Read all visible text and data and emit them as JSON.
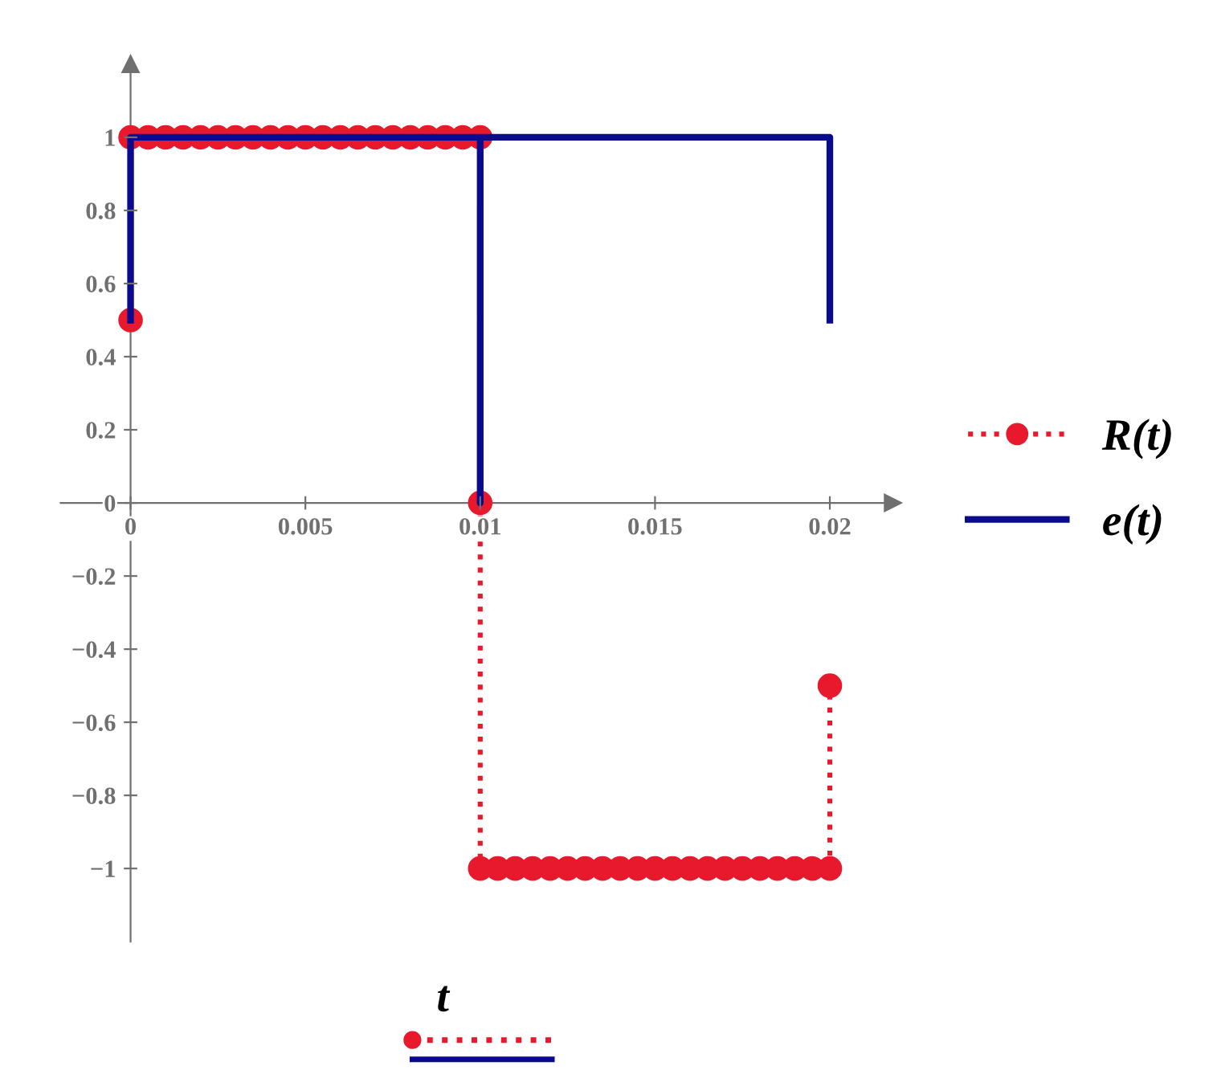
{
  "chart_data": {
    "type": "line",
    "xlabel": "t",
    "xlim": [
      -0.002,
      0.0218
    ],
    "ylim": [
      -1.2,
      1.2
    ],
    "xticks": [
      {
        "value": 0,
        "label": "0"
      },
      0.005,
      0.01,
      0.015,
      0.02
    ],
    "yticks": [
      -1,
      -0.8,
      -0.6,
      -0.4,
      -0.2,
      {
        "value": 0,
        "label": "0"
      },
      0.2,
      0.4,
      0.6,
      0.8,
      1
    ],
    "grid": false,
    "legend": "right",
    "series": [
      {
        "name": "e(t)",
        "color": "#0a0a8c",
        "marker": "none",
        "line_style": "solid",
        "x": [
          0,
          0,
          0.01,
          0.01,
          0.01,
          0.02,
          0.02
        ],
        "values": [
          0.5,
          1,
          1,
          0,
          1,
          1,
          0.5
        ]
      },
      {
        "name": "R(t)",
        "color": "#e8192c",
        "marker": "circle",
        "line_style": "dotted",
        "x": [
          0,
          0,
          0.0005,
          0.001,
          0.0015,
          0.002,
          0.0025,
          0.003,
          0.0035,
          0.004,
          0.0045,
          0.005,
          0.0055,
          0.006,
          0.0065,
          0.007,
          0.0075,
          0.008,
          0.0085,
          0.009,
          0.0095,
          0.01,
          0.01,
          0.01,
          0.0105,
          0.011,
          0.0115,
          0.012,
          0.0125,
          0.013,
          0.0135,
          0.014,
          0.0145,
          0.015,
          0.0155,
          0.016,
          0.0165,
          0.017,
          0.0175,
          0.018,
          0.0185,
          0.019,
          0.0195,
          0.02,
          0.02
        ],
        "values": [
          0.5,
          1,
          1,
          1,
          1,
          1,
          1,
          1,
          1,
          1,
          1,
          1,
          1,
          1,
          1,
          1,
          1,
          1,
          1,
          1,
          1,
          1,
          0,
          -1,
          -1,
          -1,
          -1,
          -1,
          -1,
          -1,
          -1,
          -1,
          -1,
          -1,
          -1,
          -1,
          -1,
          -1,
          -1,
          -1,
          -1,
          -1,
          -1,
          -1,
          -0.5
        ]
      }
    ]
  }
}
